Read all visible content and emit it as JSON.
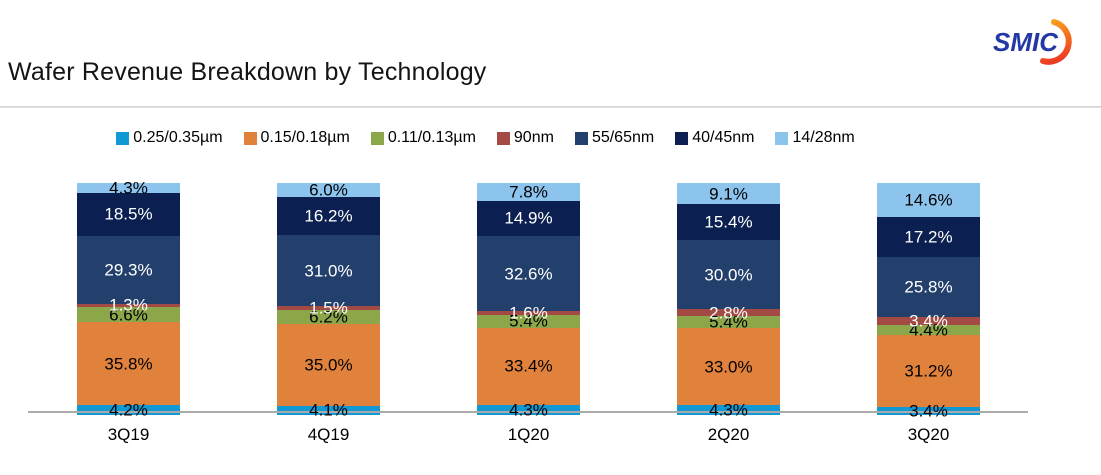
{
  "header": {
    "title": "Wafer Revenue Breakdown by Technology"
  },
  "logo": {
    "text": "SMIC",
    "text_color": "#2438a5",
    "arc_color_top": "#f9a01b",
    "arc_color_bottom": "#ec3b24"
  },
  "chart_data": {
    "type": "bar",
    "stacked": true,
    "title": "Wafer Revenue Breakdown by Technology",
    "unit": "%",
    "ylim": [
      0,
      100
    ],
    "grid": false,
    "legend_position": "top",
    "axis_line_color": "#ababab",
    "categories": [
      "3Q19",
      "4Q19",
      "1Q20",
      "2Q20",
      "3Q20"
    ],
    "series": [
      {
        "name": "0.25/0.35µm",
        "color": "#1099d5",
        "label_color": "#000000",
        "values": [
          4.2,
          4.1,
          4.3,
          4.3,
          3.4
        ]
      },
      {
        "name": "0.15/0.18µm",
        "color": "#e0813c",
        "label_color": "#000000",
        "values": [
          35.8,
          35.0,
          33.4,
          33.0,
          31.2
        ]
      },
      {
        "name": "0.11/0.13µm",
        "color": "#8ba74a",
        "label_color": "#000000",
        "values": [
          6.6,
          6.2,
          5.4,
          5.4,
          4.4
        ]
      },
      {
        "name": "90nm",
        "color": "#a34a45",
        "label_color": "#ffffff",
        "values": [
          1.3,
          1.5,
          1.6,
          2.8,
          3.4
        ]
      },
      {
        "name": "55/65nm",
        "color": "#22406b",
        "label_color": "#ffffff",
        "values": [
          29.3,
          31.0,
          32.6,
          30.0,
          25.8
        ]
      },
      {
        "name": "40/45nm",
        "color": "#0b2050",
        "label_color": "#ffffff",
        "values": [
          18.5,
          16.2,
          14.9,
          15.4,
          17.2
        ]
      },
      {
        "name": "14/28nm",
        "color": "#8dc4ee",
        "label_color": "#000000",
        "values": [
          4.3,
          6.0,
          7.8,
          9.1,
          14.6
        ]
      }
    ]
  }
}
